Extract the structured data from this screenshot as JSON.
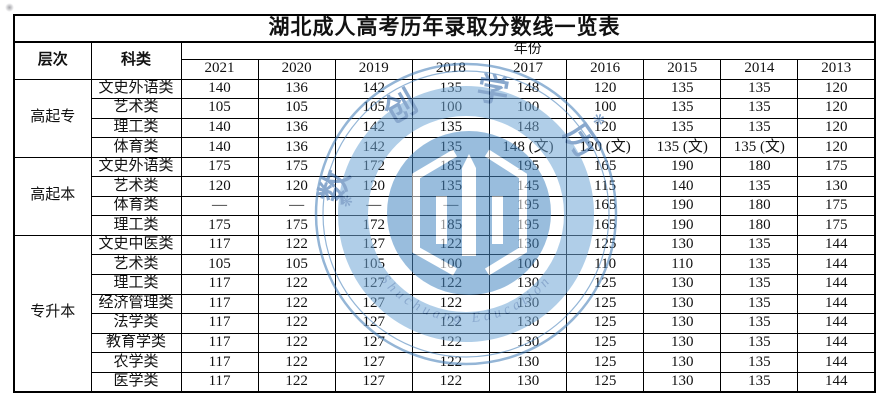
{
  "title": "湖北成人高考历年录取分数线一览表",
  "header": {
    "level": "层次",
    "subject": "科类",
    "year_group": "年份",
    "years": [
      "2021",
      "2020",
      "2019",
      "2018",
      "2017",
      "2016",
      "2015",
      "2014",
      "2013"
    ]
  },
  "groups": [
    {
      "level": "高起专",
      "rows": [
        {
          "subject": "文史外语类",
          "values": [
            "140",
            "136",
            "142",
            "135",
            "148",
            "120",
            "135",
            "135",
            "120"
          ]
        },
        {
          "subject": "艺术类",
          "values": [
            "105",
            "105",
            "105",
            "100",
            "100",
            "100",
            "135",
            "135",
            "120"
          ]
        },
        {
          "subject": "理工类",
          "values": [
            "140",
            "136",
            "142",
            "135",
            "148",
            "120",
            "135",
            "135",
            "120"
          ]
        },
        {
          "subject": "体育类",
          "values": [
            "140",
            "136",
            "142",
            "135",
            "148 (文)",
            "120 (文)",
            "135 (文)",
            "135 (文)",
            "120"
          ]
        }
      ]
    },
    {
      "level": "高起本",
      "rows": [
        {
          "subject": "文史外语类",
          "values": [
            "175",
            "175",
            "172",
            "185",
            "195",
            "165",
            "190",
            "180",
            "175"
          ]
        },
        {
          "subject": "艺术类",
          "values": [
            "120",
            "120",
            "120",
            "135",
            "145",
            "115",
            "140",
            "135",
            "130"
          ]
        },
        {
          "subject": "体育类",
          "values": [
            "—",
            "—",
            "—",
            "—",
            "195",
            "165",
            "190",
            "180",
            "175"
          ]
        },
        {
          "subject": "理工类",
          "values": [
            "175",
            "175",
            "172",
            "185",
            "195",
            "165",
            "190",
            "180",
            "175"
          ]
        }
      ]
    },
    {
      "level": "专升本",
      "rows": [
        {
          "subject": "文史中医类",
          "values": [
            "117",
            "122",
            "127",
            "122",
            "130",
            "125",
            "130",
            "135",
            "144"
          ]
        },
        {
          "subject": "艺术类",
          "values": [
            "105",
            "105",
            "105",
            "100",
            "100",
            "110",
            "110",
            "135",
            "144"
          ]
        },
        {
          "subject": "理工类",
          "values": [
            "117",
            "122",
            "127",
            "122",
            "130",
            "125",
            "130",
            "135",
            "144"
          ]
        },
        {
          "subject": "经济管理类",
          "values": [
            "117",
            "122",
            "127",
            "122",
            "130",
            "125",
            "130",
            "135",
            "144"
          ]
        },
        {
          "subject": "法学类",
          "values": [
            "117",
            "122",
            "127",
            "122",
            "130",
            "125",
            "130",
            "135",
            "144"
          ]
        },
        {
          "subject": "教育学类",
          "values": [
            "117",
            "122",
            "127",
            "122",
            "130",
            "125",
            "130",
            "135",
            "144"
          ]
        },
        {
          "subject": "农学类",
          "values": [
            "117",
            "122",
            "127",
            "122",
            "130",
            "125",
            "130",
            "135",
            "144"
          ]
        },
        {
          "subject": "医学类",
          "values": [
            "117",
            "122",
            "127",
            "122",
            "130",
            "125",
            "130",
            "135",
            "144"
          ]
        }
      ]
    }
  ],
  "watermark": {
    "chars": [
      "数",
      "创",
      "学",
      "历"
    ],
    "separator": "❋",
    "arc_text": "Shuchuang Education",
    "blue": "#4788C2",
    "dark_blue": "#2A62A6",
    "band_blue": "#71A7D6",
    "ring_blue": "#3D7AB6"
  },
  "colors": {
    "background": "#ffffff",
    "border": "#000000",
    "text": "#111111"
  }
}
